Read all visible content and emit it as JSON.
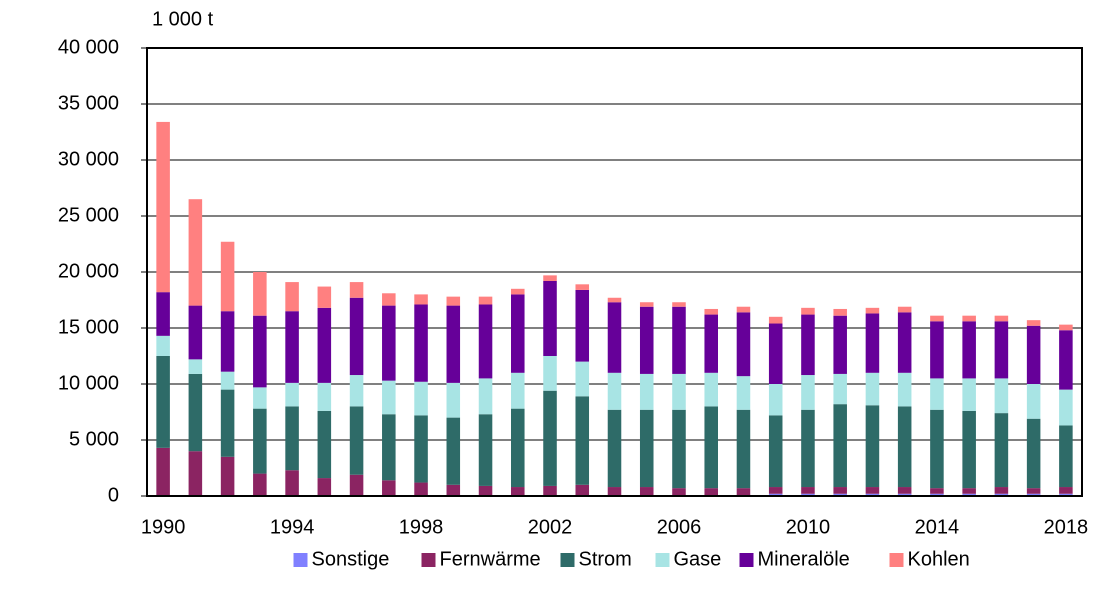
{
  "chart_data": {
    "type": "stacked-bar",
    "y_unit": "1 000 t",
    "categories": [
      "1990",
      null,
      null,
      null,
      "1994",
      null,
      null,
      null,
      "1998",
      null,
      null,
      null,
      "2002",
      null,
      null,
      null,
      "2006",
      null,
      null,
      null,
      "2010",
      null,
      null,
      null,
      "2014",
      null,
      null,
      null,
      "2018"
    ],
    "ylim": [
      0,
      40000
    ],
    "yticks": [
      {
        "value": 0,
        "label": "0"
      },
      {
        "value": 5000,
        "label": "5 000"
      },
      {
        "value": 10000,
        "label": "10 000"
      },
      {
        "value": 15000,
        "label": "15 000"
      },
      {
        "value": 20000,
        "label": "20 000"
      },
      {
        "value": 25000,
        "label": "25 000"
      },
      {
        "value": 30000,
        "label": "30 000"
      },
      {
        "value": 35000,
        "label": "35 000"
      },
      {
        "value": 40000,
        "label": "40 000"
      }
    ],
    "grid": true,
    "legend": "bottom",
    "series": [
      {
        "name": "Sonstige",
        "color": "#8080ff",
        "values": [
          0,
          0,
          0,
          0,
          0,
          0,
          0,
          0,
          0,
          0,
          0,
          0,
          0,
          0,
          0,
          0,
          0,
          0,
          0,
          200,
          200,
          200,
          200,
          200,
          200,
          200,
          200,
          200,
          200
        ]
      },
      {
        "name": "Fernwärme",
        "color": "#8b2462",
        "values": [
          4300,
          4000,
          3500,
          2000,
          2300,
          1600,
          1900,
          1400,
          1200,
          1000,
          900,
          800,
          900,
          1000,
          800,
          800,
          700,
          700,
          700,
          600,
          600,
          600,
          600,
          600,
          500,
          500,
          600,
          500,
          600
        ]
      },
      {
        "name": "Strom",
        "color": "#2e6b68",
        "values": [
          8200,
          6900,
          6000,
          5800,
          5700,
          6000,
          6100,
          5900,
          6000,
          6000,
          6400,
          7000,
          8500,
          7900,
          6900,
          6900,
          7000,
          7300,
          7000,
          6400,
          6900,
          7400,
          7300,
          7200,
          7000,
          6900,
          6600,
          6200,
          5500
        ]
      },
      {
        "name": "Gase",
        "color": "#a8e4e4",
        "values": [
          1800,
          1300,
          1600,
          1900,
          2100,
          2500,
          2800,
          3000,
          3000,
          3100,
          3200,
          3200,
          3100,
          3100,
          3300,
          3200,
          3200,
          3000,
          3000,
          2800,
          3100,
          2700,
          2900,
          3000,
          2800,
          2900,
          3100,
          3100,
          3200
        ]
      },
      {
        "name": "Mineralöle",
        "color": "#660099",
        "values": [
          3900,
          4800,
          5400,
          6400,
          6400,
          6700,
          6900,
          6700,
          6900,
          6900,
          6600,
          7000,
          6700,
          6400,
          6300,
          6000,
          6000,
          5200,
          5700,
          5400,
          5400,
          5200,
          5300,
          5400,
          5100,
          5100,
          5100,
          5200,
          5300
        ]
      },
      {
        "name": "Kohlen",
        "color": "#ff8080",
        "values": [
          15200,
          9500,
          6200,
          3900,
          2600,
          1900,
          1400,
          1100,
          900,
          800,
          700,
          500,
          500,
          500,
          400,
          400,
          400,
          500,
          500,
          600,
          600,
          600,
          500,
          500,
          500,
          500,
          500,
          500,
          500
        ]
      }
    ]
  }
}
